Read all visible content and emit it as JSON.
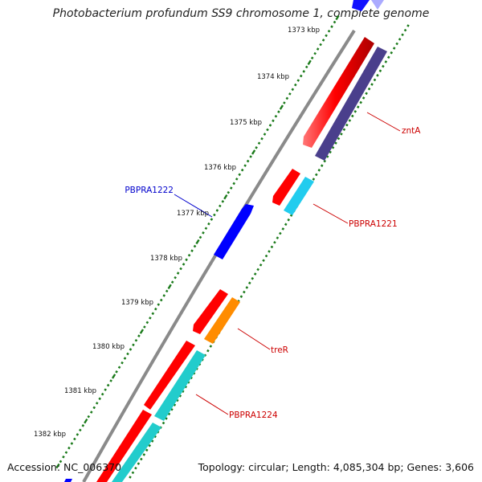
{
  "title": "Photobacterium profundum SS9 chromosome 1, complete genome",
  "footer": {
    "accession": "Accession: NC_006370",
    "summary": "Topology: circular; Length: 4,085,304 bp; Genes: 3,606"
  },
  "colors": {
    "backbone": "#8a8a8a",
    "tick": "#1a7a1a",
    "red": "#ff0000",
    "cyan": "#22cccc",
    "skyblue": "#22ccee",
    "navy": "#4a3f8c",
    "blue": "#0000ff",
    "orange": "#ff8c00",
    "label_red": "#cc0000",
    "label_blue": "#0000cc"
  },
  "tick_labels": [
    {
      "text": "1373 kbp"
    },
    {
      "text": "1374 kbp"
    },
    {
      "text": "1375 kbp"
    },
    {
      "text": "1376 kbp"
    },
    {
      "text": "1377 kbp"
    },
    {
      "text": "1378 kbp"
    },
    {
      "text": "1379 kbp"
    },
    {
      "text": "1380 kbp"
    },
    {
      "text": "1381 kbp"
    },
    {
      "text": "1382 kbp"
    }
  ],
  "gene_labels": [
    {
      "name": "zntA",
      "color": "#cc0000"
    },
    {
      "name": "PBPRA1221",
      "color": "#cc0000"
    },
    {
      "name": "PBPRA1222",
      "color": "#0000cc"
    },
    {
      "name": "treR",
      "color": "#cc0000"
    },
    {
      "name": "PBPRA1224",
      "color": "#cc0000"
    }
  ]
}
